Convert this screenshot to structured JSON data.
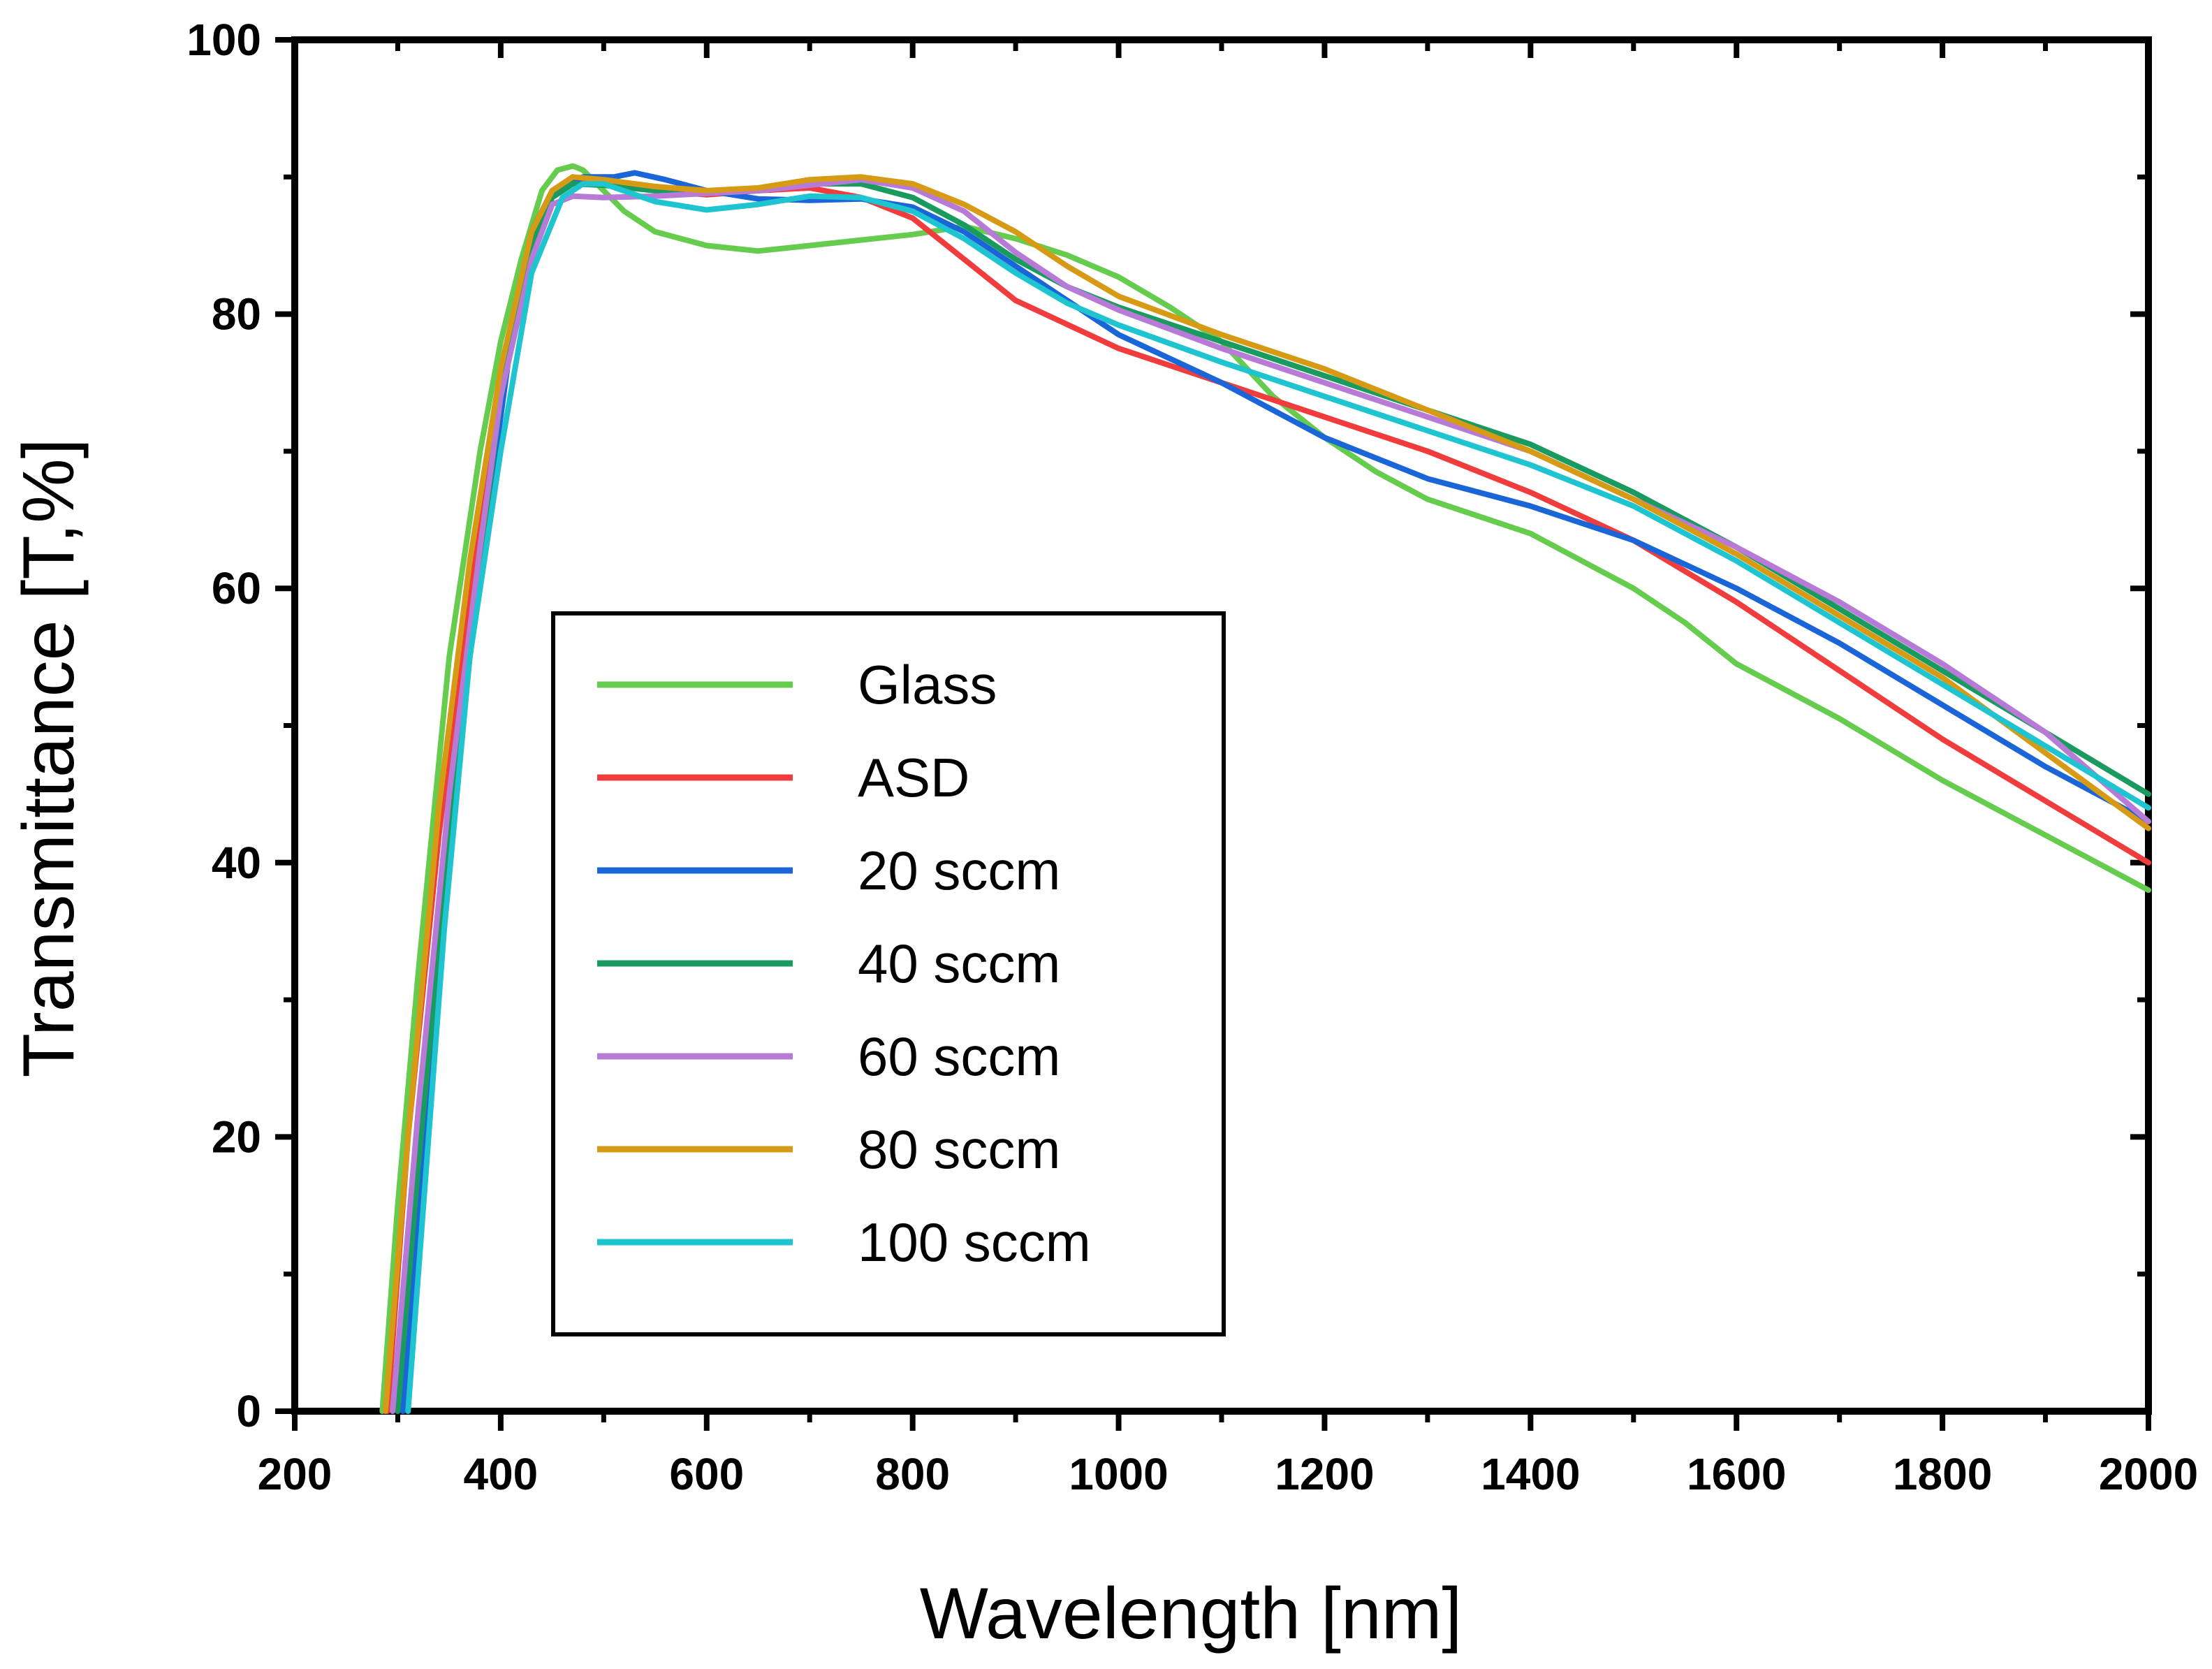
{
  "chart_data": {
    "type": "line",
    "xlabel": "Wavelength [nm]",
    "ylabel": "Transmittance [T,%]",
    "xlim": [
      200,
      2000
    ],
    "ylim": [
      0,
      100
    ],
    "xticks": [
      200,
      400,
      600,
      800,
      1000,
      1200,
      1400,
      1600,
      1800,
      2000
    ],
    "yticks": [
      0,
      20,
      40,
      60,
      80,
      100
    ],
    "xtick_labels": [
      "200",
      "400",
      "600",
      "800",
      "1000",
      "1200",
      "1400",
      "1600",
      "1800",
      "2000"
    ],
    "ytick_labels": [
      "0",
      "20",
      "40",
      "60",
      "80",
      "100"
    ],
    "grid": false,
    "legend_position": "center-left",
    "series": [
      {
        "name": "Glass",
        "color": "#66cc4d",
        "points": [
          [
            285,
            0
          ],
          [
            300,
            15
          ],
          [
            320,
            32
          ],
          [
            350,
            55
          ],
          [
            380,
            70
          ],
          [
            400,
            78
          ],
          [
            420,
            84
          ],
          [
            440,
            89
          ],
          [
            455,
            90.5
          ],
          [
            470,
            90.8
          ],
          [
            480,
            90.5
          ],
          [
            500,
            89
          ],
          [
            520,
            87.5
          ],
          [
            550,
            86
          ],
          [
            600,
            85
          ],
          [
            650,
            84.6
          ],
          [
            700,
            85
          ],
          [
            800,
            85.8
          ],
          [
            850,
            86.4
          ],
          [
            900,
            85.5
          ],
          [
            950,
            84.3
          ],
          [
            1000,
            82.7
          ],
          [
            1050,
            80.5
          ],
          [
            1100,
            78
          ],
          [
            1150,
            74
          ],
          [
            1200,
            71
          ],
          [
            1250,
            68.5
          ],
          [
            1300,
            66.5
          ],
          [
            1400,
            64
          ],
          [
            1500,
            60
          ],
          [
            1550,
            57.5
          ],
          [
            1600,
            54.5
          ],
          [
            1700,
            50.5
          ],
          [
            1800,
            46
          ],
          [
            1900,
            42
          ],
          [
            2000,
            38
          ]
        ]
      },
      {
        "name": "ASD",
        "color": "#f03c3c",
        "points": [
          [
            290,
            0
          ],
          [
            310,
            20
          ],
          [
            340,
            42
          ],
          [
            370,
            60
          ],
          [
            400,
            74
          ],
          [
            430,
            86
          ],
          [
            450,
            89
          ],
          [
            470,
            90
          ],
          [
            500,
            89.5
          ],
          [
            550,
            89
          ],
          [
            600,
            88.7
          ],
          [
            650,
            89
          ],
          [
            700,
            89.2
          ],
          [
            750,
            88.5
          ],
          [
            800,
            87
          ],
          [
            850,
            84
          ],
          [
            900,
            81
          ],
          [
            1000,
            77.5
          ],
          [
            1100,
            75
          ],
          [
            1200,
            72.5
          ],
          [
            1300,
            70
          ],
          [
            1400,
            67
          ],
          [
            1500,
            63.5
          ],
          [
            1600,
            59
          ],
          [
            1700,
            54
          ],
          [
            1800,
            49
          ],
          [
            1900,
            44.5
          ],
          [
            2000,
            40
          ]
        ]
      },
      {
        "name": "20 sccm",
        "color": "#1a66d9",
        "points": [
          [
            305,
            0
          ],
          [
            320,
            15
          ],
          [
            340,
            35
          ],
          [
            370,
            55
          ],
          [
            390,
            67
          ],
          [
            410,
            78
          ],
          [
            430,
            86
          ],
          [
            450,
            89
          ],
          [
            480,
            90
          ],
          [
            510,
            90
          ],
          [
            530,
            90.3
          ],
          [
            560,
            89.8
          ],
          [
            600,
            89
          ],
          [
            650,
            88.4
          ],
          [
            700,
            88.3
          ],
          [
            750,
            88.4
          ],
          [
            800,
            87.8
          ],
          [
            850,
            86
          ],
          [
            900,
            83.5
          ],
          [
            950,
            81
          ],
          [
            1000,
            78.5
          ],
          [
            1100,
            75
          ],
          [
            1200,
            71
          ],
          [
            1300,
            68
          ],
          [
            1400,
            66
          ],
          [
            1500,
            63.5
          ],
          [
            1600,
            60
          ],
          [
            1700,
            56
          ],
          [
            1800,
            51.5
          ],
          [
            1900,
            47
          ],
          [
            2000,
            43
          ]
        ]
      },
      {
        "name": "40 sccm",
        "color": "#199a5f",
        "points": [
          [
            300,
            0
          ],
          [
            320,
            18
          ],
          [
            350,
            42
          ],
          [
            380,
            62
          ],
          [
            400,
            74
          ],
          [
            430,
            85
          ],
          [
            450,
            88.5
          ],
          [
            470,
            89.5
          ],
          [
            500,
            89.4
          ],
          [
            550,
            89
          ],
          [
            600,
            88.8
          ],
          [
            650,
            89
          ],
          [
            700,
            89.5
          ],
          [
            750,
            89.5
          ],
          [
            800,
            88.5
          ],
          [
            850,
            86.5
          ],
          [
            900,
            84
          ],
          [
            950,
            82
          ],
          [
            1000,
            80.5
          ],
          [
            1100,
            78
          ],
          [
            1200,
            75.5
          ],
          [
            1300,
            73
          ],
          [
            1400,
            70.5
          ],
          [
            1500,
            67
          ],
          [
            1600,
            63
          ],
          [
            1700,
            58.5
          ],
          [
            1800,
            54
          ],
          [
            1900,
            49.5
          ],
          [
            2000,
            45
          ]
        ]
      },
      {
        "name": "60 sccm",
        "color": "#b77ad6",
        "points": [
          [
            295,
            0
          ],
          [
            320,
            22
          ],
          [
            350,
            45
          ],
          [
            380,
            63
          ],
          [
            400,
            74
          ],
          [
            430,
            84
          ],
          [
            450,
            88
          ],
          [
            470,
            88.6
          ],
          [
            500,
            88.5
          ],
          [
            550,
            88.6
          ],
          [
            600,
            88.8
          ],
          [
            650,
            89
          ],
          [
            700,
            89.4
          ],
          [
            750,
            89.8
          ],
          [
            800,
            89.2
          ],
          [
            850,
            87.5
          ],
          [
            900,
            84.5
          ],
          [
            950,
            82
          ],
          [
            1000,
            80.3
          ],
          [
            1100,
            77.5
          ],
          [
            1200,
            75
          ],
          [
            1300,
            72.5
          ],
          [
            1400,
            70
          ],
          [
            1500,
            66.5
          ],
          [
            1600,
            63
          ],
          [
            1700,
            59
          ],
          [
            1800,
            54.5
          ],
          [
            1900,
            49.5
          ],
          [
            2000,
            43
          ]
        ]
      },
      {
        "name": "80 sccm",
        "color": "#d69a14",
        "points": [
          [
            288,
            0
          ],
          [
            310,
            20
          ],
          [
            340,
            44
          ],
          [
            370,
            62
          ],
          [
            400,
            76
          ],
          [
            430,
            86
          ],
          [
            450,
            89
          ],
          [
            470,
            90
          ],
          [
            500,
            89.8
          ],
          [
            550,
            89.3
          ],
          [
            600,
            89
          ],
          [
            650,
            89.2
          ],
          [
            700,
            89.8
          ],
          [
            750,
            90
          ],
          [
            800,
            89.5
          ],
          [
            850,
            88
          ],
          [
            900,
            86
          ],
          [
            950,
            83.5
          ],
          [
            1000,
            81.3
          ],
          [
            1100,
            78.5
          ],
          [
            1200,
            76
          ],
          [
            1300,
            73
          ],
          [
            1400,
            70
          ],
          [
            1500,
            66.5
          ],
          [
            1600,
            62.5
          ],
          [
            1700,
            58
          ],
          [
            1800,
            53.5
          ],
          [
            1900,
            48
          ],
          [
            2000,
            42.5
          ]
        ]
      },
      {
        "name": "100 sccm",
        "color": "#1fc4d1",
        "points": [
          [
            310,
            0
          ],
          [
            325,
            15
          ],
          [
            345,
            35
          ],
          [
            370,
            55
          ],
          [
            400,
            70
          ],
          [
            430,
            83
          ],
          [
            460,
            88.5
          ],
          [
            480,
            89.5
          ],
          [
            500,
            89.5
          ],
          [
            550,
            88.2
          ],
          [
            600,
            87.6
          ],
          [
            650,
            88
          ],
          [
            700,
            88.6
          ],
          [
            750,
            88.5
          ],
          [
            800,
            87.5
          ],
          [
            850,
            85.5
          ],
          [
            900,
            83
          ],
          [
            950,
            80.8
          ],
          [
            1000,
            79.2
          ],
          [
            1100,
            76.5
          ],
          [
            1200,
            74
          ],
          [
            1300,
            71.5
          ],
          [
            1400,
            69
          ],
          [
            1500,
            66
          ],
          [
            1600,
            62
          ],
          [
            1700,
            57.5
          ],
          [
            1800,
            53
          ],
          [
            1900,
            48.5
          ],
          [
            2000,
            44
          ]
        ]
      }
    ]
  }
}
